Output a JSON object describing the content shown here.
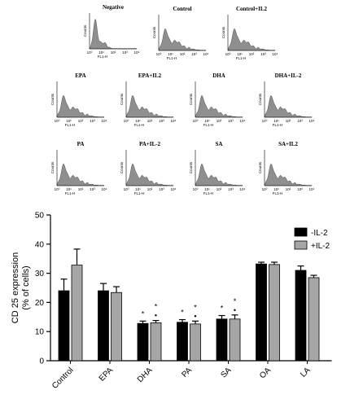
{
  "chart_data": [
    {
      "type": "histogram",
      "panels": [
        {
          "title": "Negative",
          "xlabel": "FL1-H",
          "ylabel": "Counts",
          "shape": "sharp"
        },
        {
          "title": "Control",
          "xlabel": "FL1-H",
          "ylabel": "Counts",
          "shape": "broad"
        },
        {
          "title": "Control+IL2",
          "xlabel": "FL1-H",
          "ylabel": "Counts",
          "shape": "broad"
        },
        {
          "title": "EPA",
          "xlabel": "FL1-H",
          "ylabel": "Counts",
          "shape": "broad"
        },
        {
          "title": "EPA+IL2",
          "xlabel": "FL1-H",
          "ylabel": "Counts",
          "shape": "broad"
        },
        {
          "title": "DHA",
          "xlabel": "FL1-H",
          "ylabel": "Counts",
          "shape": "broad"
        },
        {
          "title": "DHA+IL-2",
          "xlabel": "FL1-H",
          "ylabel": "Counts",
          "shape": "broad"
        },
        {
          "title": "PA",
          "xlabel": "FL1-H",
          "ylabel": "Counts",
          "shape": "broad"
        },
        {
          "title": "PA+IL-2",
          "xlabel": "FL1-H",
          "ylabel": "Counts",
          "shape": "broad"
        },
        {
          "title": "SA",
          "xlabel": "FL1-H",
          "ylabel": "Counts",
          "shape": "broad"
        },
        {
          "title": "SA+IL2",
          "xlabel": "FL1-H",
          "ylabel": "Counts",
          "shape": "broad"
        }
      ],
      "x_ticks": [
        "10⁰",
        "10¹",
        "10²",
        "10³",
        "10⁴"
      ]
    },
    {
      "type": "bar",
      "categories": [
        "Control",
        "EPA",
        "DHA",
        "PA",
        "SA",
        "OA",
        "LA"
      ],
      "series": [
        {
          "name": "-IL-2",
          "color": "#000000",
          "values": [
            24,
            24,
            12.8,
            13.2,
            14.3,
            33.2,
            31.0
          ],
          "errors": [
            4.0,
            2.5,
            0.8,
            0.9,
            1.2,
            0.6,
            1.5
          ]
        },
        {
          "name": "+IL-2",
          "color": "#a6a6a6",
          "values": [
            32.8,
            23.4,
            13.0,
            12.6,
            14.3,
            33.0,
            28.5
          ],
          "errors": [
            5.5,
            2.0,
            0.8,
            1.0,
            1.4,
            0.8,
            0.8
          ]
        }
      ],
      "annotations": {
        "star": "*",
        "dot": "•",
        "star_categories": [
          "DHA",
          "PA",
          "SA"
        ],
        "dot_categories": [
          "DHA",
          "PA",
          "SA"
        ]
      },
      "ylabel": "CD 25 expression\n(% of cells)",
      "ylim": [
        0,
        50
      ],
      "yticks": [
        0,
        10,
        20,
        30,
        40,
        50
      ],
      "legend_position": "top-right"
    }
  ]
}
